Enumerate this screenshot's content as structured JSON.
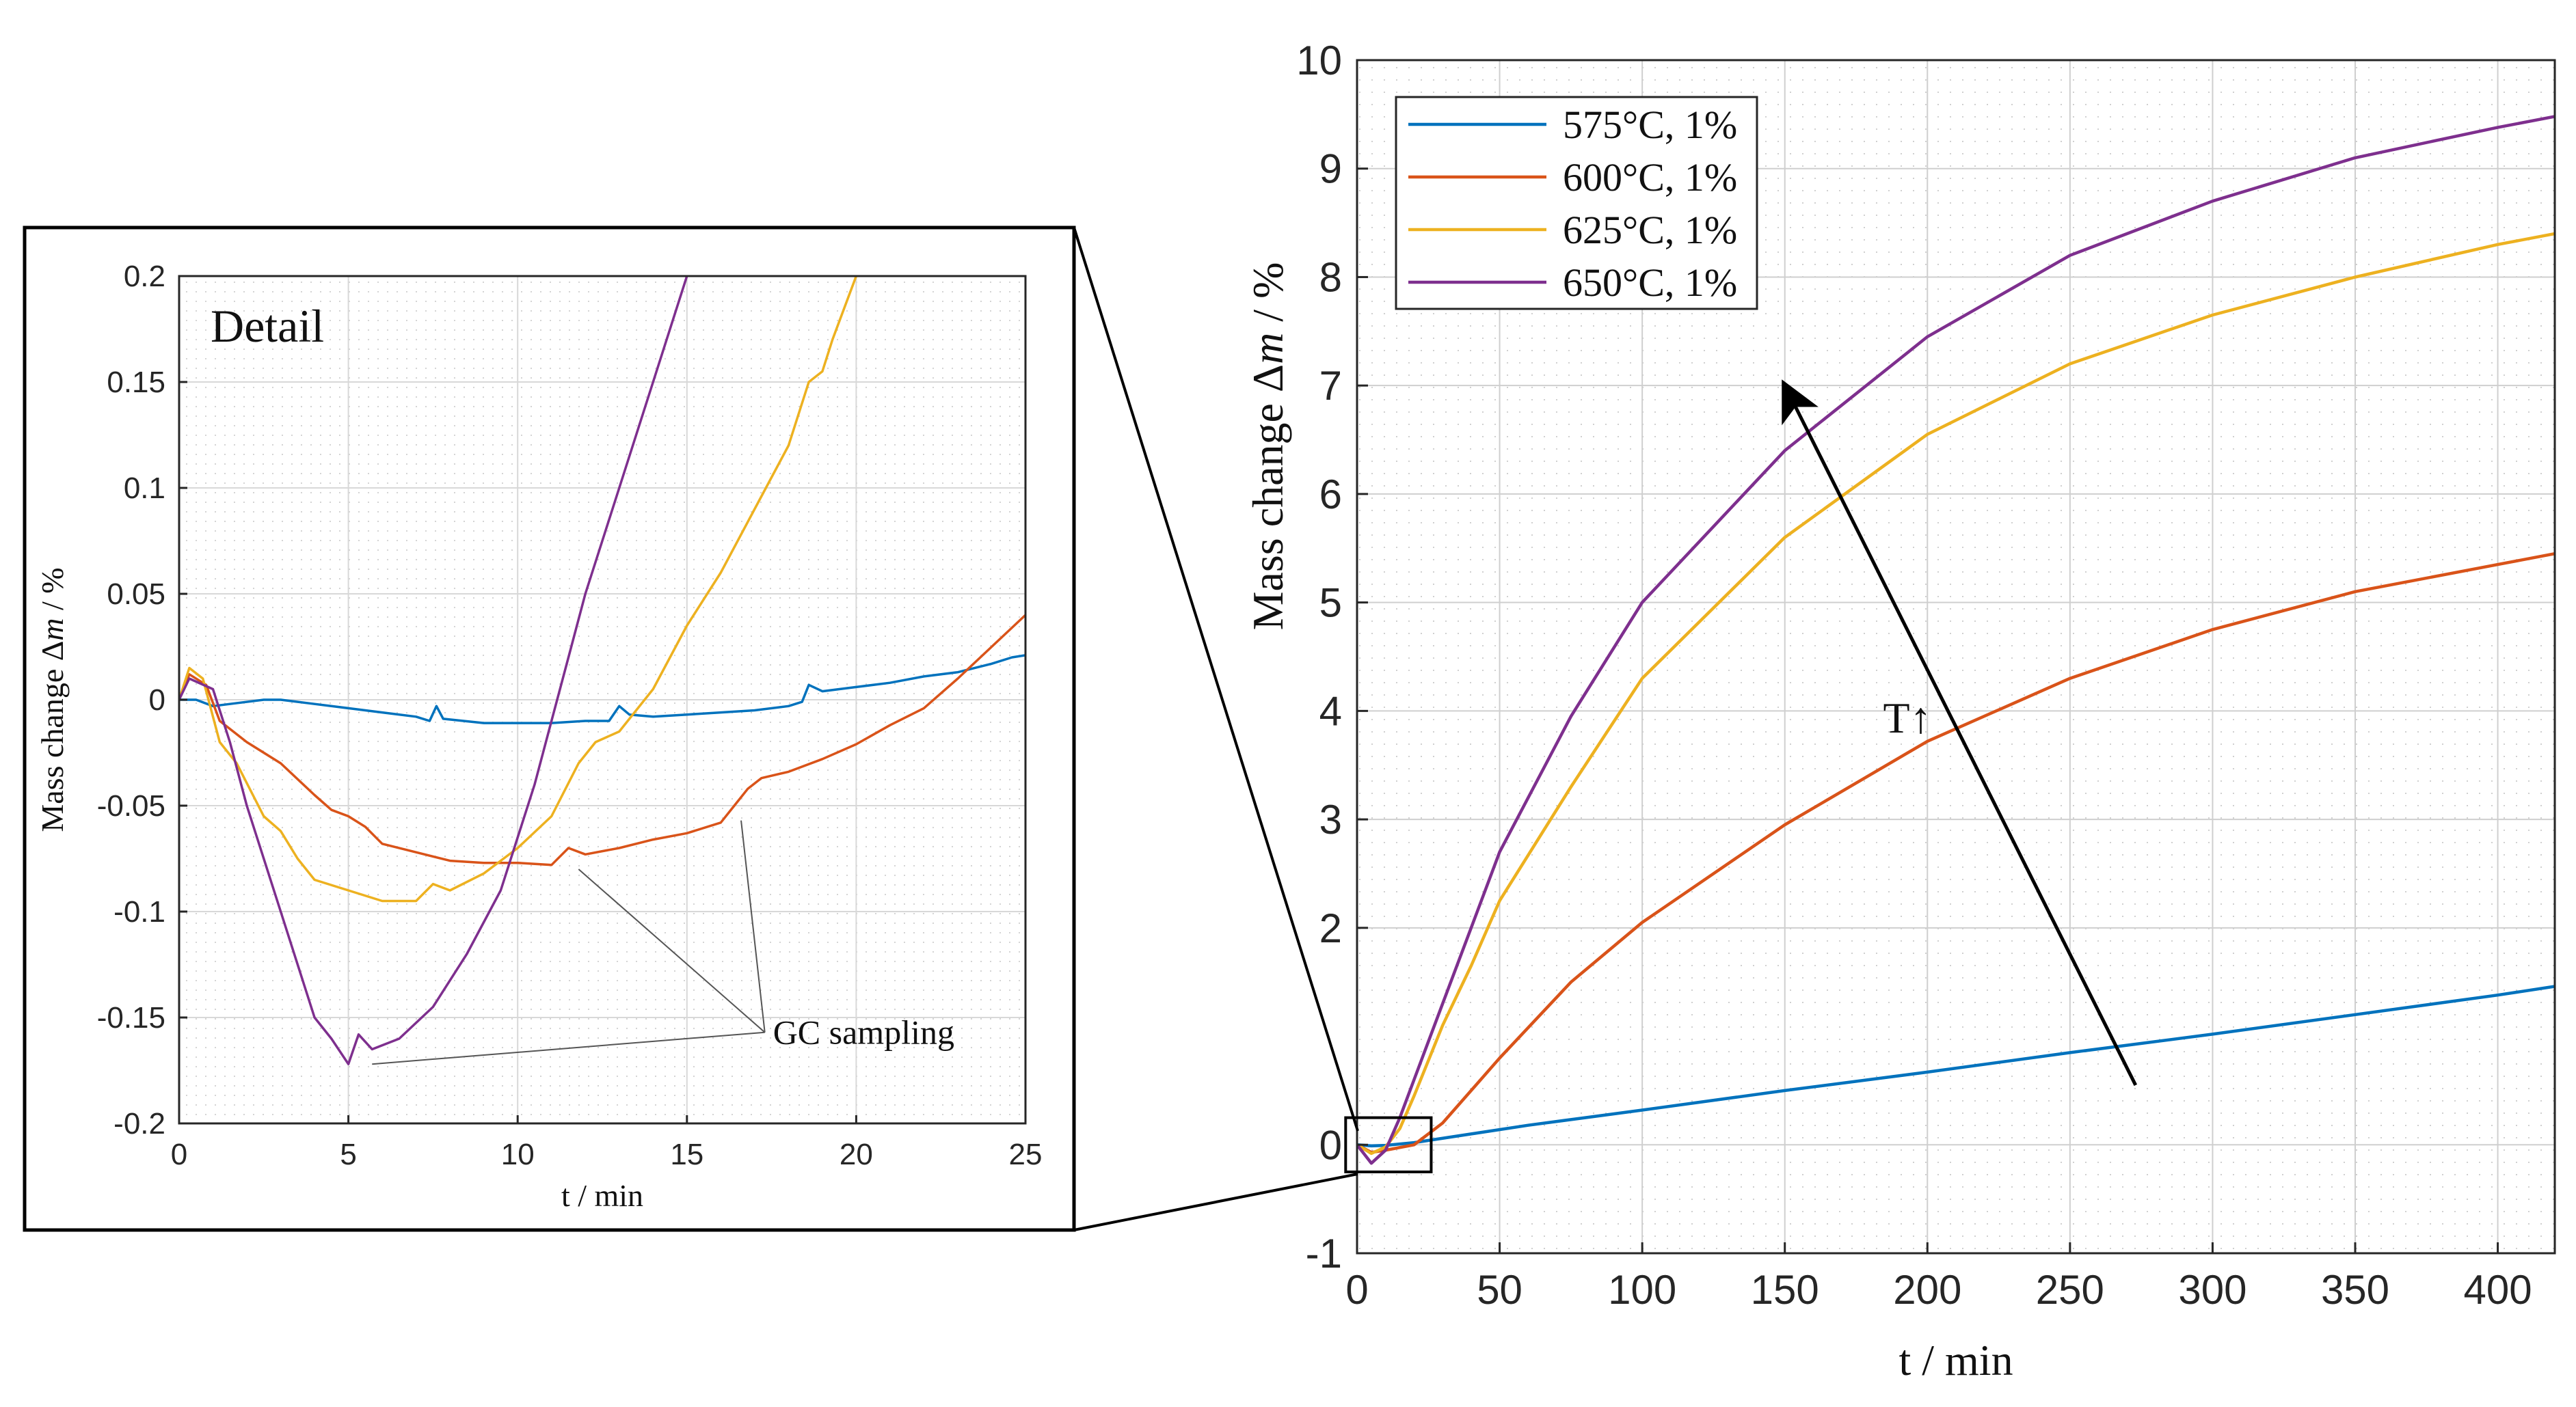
{
  "chart_data": [
    {
      "id": "main",
      "type": "line",
      "xlabel": "t / min",
      "ylabel": "Mass change Δm / %",
      "ylabel_parts": {
        "prefix": "Mass change Δ",
        "var": "m",
        "unit": " /  %"
      },
      "xlim": [
        0,
        420
      ],
      "ylim": [
        -1,
        10
      ],
      "xticks": [
        0,
        50,
        100,
        150,
        200,
        250,
        300,
        350,
        400
      ],
      "yticks": [
        -1,
        0,
        2,
        3,
        4,
        5,
        6,
        7,
        8,
        9,
        10
      ],
      "legend_position": "top-left",
      "annotation": "T↑",
      "annotation_arrow": {
        "from": [
          273,
          0.55
        ],
        "to": [
          150,
          7.0
        ]
      },
      "zoom_box": {
        "x": [
          -4,
          26
        ],
        "y": [
          -0.25,
          0.25
        ]
      },
      "series": [
        {
          "name": "575°C, 1%",
          "color": "#0072BD",
          "points": [
            [
              0,
              0
            ],
            [
              5,
              -0.01
            ],
            [
              10,
              -0.005
            ],
            [
              20,
              0.02
            ],
            [
              40,
              0.1
            ],
            [
              60,
              0.18
            ],
            [
              80,
              0.25
            ],
            [
              100,
              0.32
            ],
            [
              150,
              0.5
            ],
            [
              200,
              0.67
            ],
            [
              250,
              0.85
            ],
            [
              300,
              1.02
            ],
            [
              350,
              1.2
            ],
            [
              400,
              1.38
            ],
            [
              420,
              1.46
            ]
          ]
        },
        {
          "name": "600°C, 1%",
          "color": "#D95319",
          "points": [
            [
              0,
              0
            ],
            [
              5,
              -0.07
            ],
            [
              10,
              -0.05
            ],
            [
              20,
              0
            ],
            [
              30,
              0.2
            ],
            [
              40,
              0.5
            ],
            [
              50,
              0.8
            ],
            [
              75,
              1.5
            ],
            [
              100,
              2.05
            ],
            [
              150,
              2.95
            ],
            [
              200,
              3.72
            ],
            [
              250,
              4.3
            ],
            [
              300,
              4.75
            ],
            [
              350,
              5.1
            ],
            [
              400,
              5.35
            ],
            [
              420,
              5.45
            ]
          ]
        },
        {
          "name": "625°C, 1%",
          "color": "#EDB120",
          "points": [
            [
              0,
              0
            ],
            [
              5,
              -0.08
            ],
            [
              10,
              -0.02
            ],
            [
              15,
              0.15
            ],
            [
              20,
              0.45
            ],
            [
              30,
              1.1
            ],
            [
              40,
              1.65
            ],
            [
              50,
              2.25
            ],
            [
              75,
              3.3
            ],
            [
              100,
              4.3
            ],
            [
              150,
              5.6
            ],
            [
              200,
              6.55
            ],
            [
              250,
              7.2
            ],
            [
              300,
              7.65
            ],
            [
              350,
              8.0
            ],
            [
              400,
              8.3
            ],
            [
              420,
              8.4
            ]
          ]
        },
        {
          "name": "650°C, 1%",
          "color": "#7E2F8E",
          "points": [
            [
              0,
              0
            ],
            [
              5,
              -0.17
            ],
            [
              10,
              -0.05
            ],
            [
              15,
              0.25
            ],
            [
              20,
              0.6
            ],
            [
              30,
              1.3
            ],
            [
              40,
              2.0
            ],
            [
              50,
              2.7
            ],
            [
              75,
              3.95
            ],
            [
              100,
              5.0
            ],
            [
              150,
              6.4
            ],
            [
              200,
              7.45
            ],
            [
              250,
              8.2
            ],
            [
              300,
              8.7
            ],
            [
              350,
              9.1
            ],
            [
              400,
              9.38
            ],
            [
              420,
              9.48
            ]
          ]
        }
      ]
    },
    {
      "id": "inset",
      "type": "line",
      "title": "Detail",
      "xlabel": "t / min",
      "ylabel": "Mass change Δm / %",
      "ylabel_parts": {
        "prefix": "Mass change Δ",
        "var": "m",
        "unit": " /  %"
      },
      "xlim": [
        0,
        25
      ],
      "ylim": [
        -0.2,
        0.2
      ],
      "xticks": [
        0,
        5,
        10,
        15,
        20,
        25
      ],
      "yticks": [
        -0.2,
        -0.15,
        -0.1,
        -0.05,
        0,
        0.05,
        0.1,
        0.15,
        0.2
      ],
      "ytick_labels": [
        "-0.2",
        "-0.15",
        "-0.1",
        "-0.05",
        "0",
        "0.05",
        "0.1",
        "0.15",
        "0.2"
      ],
      "annotation": "GC sampling",
      "annotation_targets": [
        [
          5.7,
          -0.172
        ],
        [
          11.8,
          -0.08
        ],
        [
          16.6,
          -0.057
        ]
      ],
      "annotation_anchor": [
        17.3,
        -0.157
      ],
      "series": [
        {
          "name": "575°C, 1%",
          "color": "#0072BD",
          "points": [
            [
              0,
              0
            ],
            [
              0.5,
              0
            ],
            [
              1,
              -0.003
            ],
            [
              1.5,
              -0.002
            ],
            [
              2.5,
              0
            ],
            [
              3,
              0
            ],
            [
              4,
              -0.002
            ],
            [
              5,
              -0.004
            ],
            [
              6,
              -0.006
            ],
            [
              7,
              -0.008
            ],
            [
              7.4,
              -0.01
            ],
            [
              7.6,
              -0.003
            ],
            [
              7.8,
              -0.009
            ],
            [
              9,
              -0.011
            ],
            [
              10,
              -0.011
            ],
            [
              11,
              -0.011
            ],
            [
              12,
              -0.01
            ],
            [
              12.7,
              -0.01
            ],
            [
              13,
              -0.003
            ],
            [
              13.3,
              -0.007
            ],
            [
              14,
              -0.008
            ],
            [
              15,
              -0.007
            ],
            [
              16,
              -0.006
            ],
            [
              17,
              -0.005
            ],
            [
              18,
              -0.003
            ],
            [
              18.4,
              -0.001
            ],
            [
              18.6,
              0.007
            ],
            [
              19,
              0.004
            ],
            [
              20,
              0.006
            ],
            [
              21,
              0.008
            ],
            [
              22,
              0.011
            ],
            [
              23,
              0.013
            ],
            [
              24,
              0.017
            ],
            [
              24.6,
              0.02
            ],
            [
              25,
              0.021
            ]
          ]
        },
        {
          "name": "600°C, 1%",
          "color": "#D95319",
          "points": [
            [
              0,
              0
            ],
            [
              0.3,
              0.012
            ],
            [
              0.8,
              0.007
            ],
            [
              1.2,
              -0.01
            ],
            [
              2,
              -0.02
            ],
            [
              3,
              -0.03
            ],
            [
              4,
              -0.045
            ],
            [
              4.5,
              -0.052
            ],
            [
              5,
              -0.055
            ],
            [
              5.5,
              -0.06
            ],
            [
              6,
              -0.068
            ],
            [
              7,
              -0.072
            ],
            [
              8,
              -0.076
            ],
            [
              9,
              -0.077
            ],
            [
              10,
              -0.077
            ],
            [
              11,
              -0.078
            ],
            [
              11.5,
              -0.07
            ],
            [
              12,
              -0.073
            ],
            [
              13,
              -0.07
            ],
            [
              14,
              -0.066
            ],
            [
              15,
              -0.063
            ],
            [
              16,
              -0.058
            ],
            [
              16.4,
              -0.05
            ],
            [
              16.8,
              -0.042
            ],
            [
              17.2,
              -0.037
            ],
            [
              18,
              -0.034
            ],
            [
              19,
              -0.028
            ],
            [
              20,
              -0.021
            ],
            [
              21,
              -0.012
            ],
            [
              22,
              -0.004
            ],
            [
              23,
              0.01
            ],
            [
              24,
              0.025
            ],
            [
              25,
              0.04
            ]
          ]
        },
        {
          "name": "625°C, 1%",
          "color": "#EDB120",
          "points": [
            [
              0,
              0
            ],
            [
              0.3,
              0.015
            ],
            [
              0.7,
              0.01
            ],
            [
              1.2,
              -0.02
            ],
            [
              1.7,
              -0.03
            ],
            [
              2.5,
              -0.055
            ],
            [
              3,
              -0.062
            ],
            [
              3.5,
              -0.075
            ],
            [
              4,
              -0.085
            ],
            [
              5,
              -0.09
            ],
            [
              6,
              -0.095
            ],
            [
              7,
              -0.095
            ],
            [
              7.5,
              -0.087
            ],
            [
              8,
              -0.09
            ],
            [
              9,
              -0.082
            ],
            [
              10,
              -0.07
            ],
            [
              11,
              -0.055
            ],
            [
              11.8,
              -0.03
            ],
            [
              12.3,
              -0.02
            ],
            [
              13,
              -0.015
            ],
            [
              14,
              0.005
            ],
            [
              15,
              0.035
            ],
            [
              16,
              0.06
            ],
            [
              17,
              0.09
            ],
            [
              18,
              0.12
            ],
            [
              18.6,
              0.15
            ],
            [
              19,
              0.155
            ],
            [
              19.3,
              0.17
            ],
            [
              20,
              0.2
            ]
          ]
        },
        {
          "name": "650°C, 1%",
          "color": "#7E2F8E",
          "points": [
            [
              0,
              0
            ],
            [
              0.3,
              0.01
            ],
            [
              1,
              0.005
            ],
            [
              1.5,
              -0.02
            ],
            [
              2,
              -0.05
            ],
            [
              3,
              -0.1
            ],
            [
              4,
              -0.15
            ],
            [
              4.5,
              -0.16
            ],
            [
              5,
              -0.172
            ],
            [
              5.3,
              -0.158
            ],
            [
              5.7,
              -0.165
            ],
            [
              6.5,
              -0.16
            ],
            [
              7.5,
              -0.145
            ],
            [
              8.5,
              -0.12
            ],
            [
              9.5,
              -0.09
            ],
            [
              10.5,
              -0.04
            ],
            [
              11,
              -0.01
            ],
            [
              11.5,
              0.02
            ],
            [
              12,
              0.05
            ],
            [
              13,
              0.1
            ],
            [
              14,
              0.15
            ],
            [
              15,
              0.2
            ]
          ]
        }
      ]
    }
  ]
}
